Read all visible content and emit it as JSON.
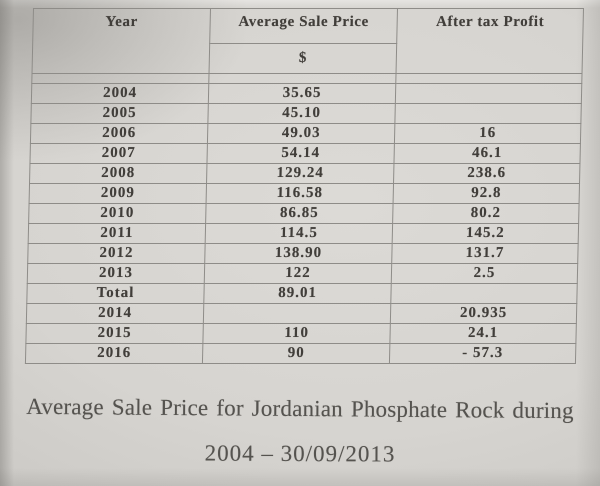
{
  "table": {
    "columns": {
      "year": "Year",
      "price": "Average Sale Price",
      "profit": "After tax Profit"
    },
    "price_unit": "$",
    "rows": [
      {
        "year": "2004",
        "price": "35.65",
        "profit": ""
      },
      {
        "year": "2005",
        "price": "45.10",
        "profit": ""
      },
      {
        "year": "2006",
        "price": "49.03",
        "profit": "16"
      },
      {
        "year": "2007",
        "price": "54.14",
        "profit": "46.1"
      },
      {
        "year": "2008",
        "price": "129.24",
        "profit": "238.6"
      },
      {
        "year": "2009",
        "price": "116.58",
        "profit": "92.8"
      },
      {
        "year": "2010",
        "price": "86.85",
        "profit": "80.2"
      },
      {
        "year": "2011",
        "price": "114.5",
        "profit": "145.2"
      },
      {
        "year": "2012",
        "price": "138.90",
        "profit": "131.7"
      },
      {
        "year": "2013",
        "price": "122",
        "profit": "2.5"
      },
      {
        "year": "Total",
        "price": "89.01",
        "profit": ""
      },
      {
        "year": "2014",
        "price": "",
        "profit": "20.935"
      },
      {
        "year": "2015",
        "price": "110",
        "profit": "24.1"
      },
      {
        "year": "2016",
        "price": "90",
        "profit": "- 57.3"
      }
    ]
  },
  "caption": {
    "line1": "Average Sale Price for Jordanian Phosphate Rock during",
    "line2": "2004 – 30/09/2013"
  },
  "colors": {
    "paper": "#d6d4d0",
    "ink": "#413e3a",
    "table_border": "#8e8c88"
  }
}
